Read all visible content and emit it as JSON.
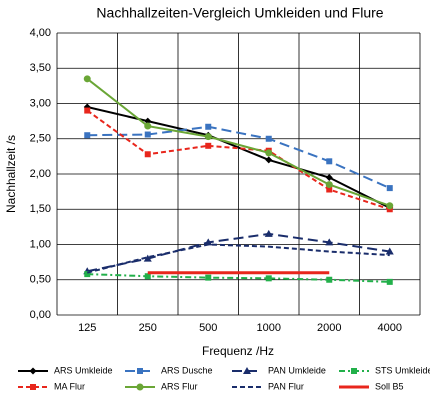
{
  "chart_data": {
    "type": "line",
    "title": "Nachhallzeiten-Vergleich Umkleiden und Flure",
    "x_label": "Frequenz /Hz",
    "y_label": "Nachhallzeit /s",
    "categories": [
      "125",
      "250",
      "500",
      "1000",
      "2000",
      "4000"
    ],
    "ylim": [
      0,
      4
    ],
    "yticks": [
      {
        "value": 0,
        "label": "0,00"
      },
      {
        "value": 0.5,
        "label": "0,50"
      },
      {
        "value": 1,
        "label": "1,00"
      },
      {
        "value": 1.5,
        "label": "1,50"
      },
      {
        "value": 2,
        "label": "2,00"
      },
      {
        "value": 2.5,
        "label": "2,50"
      },
      {
        "value": 3,
        "label": "3,00"
      },
      {
        "value": 3.5,
        "label": "3,50"
      },
      {
        "value": 4,
        "label": "4,00"
      }
    ],
    "grid": true,
    "legend": "bottom",
    "series": [
      {
        "name": "ARS Umkleide",
        "color": "#000000",
        "dash": "solid",
        "marker": "diamond",
        "values": [
          2.95,
          2.75,
          2.55,
          2.2,
          1.95,
          1.52
        ]
      },
      {
        "name": "ARS Dusche",
        "color": "#3a73c0",
        "dash": "longdash",
        "marker": "square",
        "values": [
          2.55,
          2.56,
          2.67,
          2.5,
          2.18,
          1.8
        ]
      },
      {
        "name": "PAN Umkleide",
        "color": "#1a2d6b",
        "dash": "longdash",
        "marker": "triangle",
        "values": [
          0.62,
          0.8,
          1.03,
          1.15,
          1.03,
          0.9
        ]
      },
      {
        "name": "STS Umkleide",
        "color": "#22b04a",
        "dash": "dashdot",
        "marker": "square",
        "values": [
          0.58,
          0.55,
          0.53,
          0.52,
          0.5,
          0.47
        ]
      },
      {
        "name": "MA Flur",
        "color": "#e8261c",
        "dash": "dash",
        "marker": "square",
        "values": [
          2.9,
          2.28,
          2.4,
          2.33,
          1.78,
          1.5
        ]
      },
      {
        "name": "ARS Flur",
        "color": "#6aa636",
        "dash": "solid",
        "marker": "circle",
        "values": [
          3.35,
          2.68,
          2.53,
          2.3,
          1.85,
          1.55
        ]
      },
      {
        "name": "PAN Flur",
        "color": "#1a2d6b",
        "dash": "dash",
        "marker": "none",
        "values": [
          0.6,
          0.82,
          1.0,
          0.97,
          0.9,
          0.85
        ]
      },
      {
        "name": "Soll B5",
        "color": "#e8261c",
        "dash": "thick",
        "marker": "none",
        "values": [
          null,
          0.6,
          0.6,
          0.6,
          0.6,
          null
        ]
      }
    ]
  }
}
